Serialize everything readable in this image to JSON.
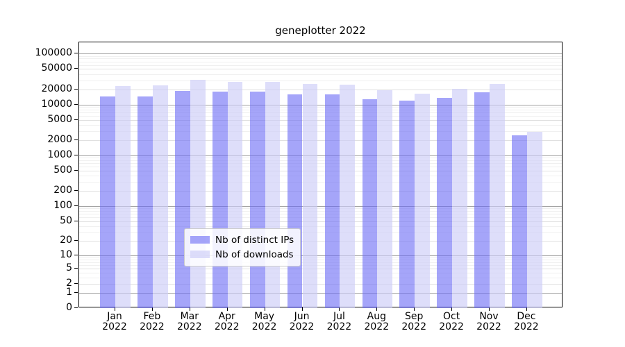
{
  "title": "geneplotter 2022",
  "chart_data": {
    "type": "bar",
    "title": "geneplotter 2022",
    "categories": [
      "Jan 2022",
      "Feb 2022",
      "Mar 2022",
      "Apr 2022",
      "May 2022",
      "Jun 2022",
      "Jul 2022",
      "Aug 2022",
      "Sep 2022",
      "Oct 2022",
      "Nov 2022",
      "Dec 2022"
    ],
    "series": [
      {
        "name": "Nb of distinct IPs",
        "color": "rgba(105,105,245,0.60)",
        "color_hex_on_white": "#a5a5f6",
        "values": [
          14500,
          14300,
          18400,
          17800,
          17800,
          16100,
          15800,
          12700,
          11800,
          13700,
          17700,
          2450
        ]
      },
      {
        "name": "Nb of downloads",
        "color": "rgba(205,205,248,0.65)",
        "color_hex_on_white": "#dedefa",
        "values": [
          22800,
          24000,
          30300,
          27900,
          27900,
          25600,
          24800,
          19300,
          16500,
          20200,
          25400,
          2900
        ]
      }
    ],
    "xlabel": "",
    "ylabel": "",
    "yscale": "symlog",
    "ylim": [
      0,
      163000
    ],
    "y_ticks": [
      0,
      1,
      2,
      5,
      10,
      20,
      50,
      100,
      200,
      500,
      1000,
      2000,
      5000,
      10000,
      20000,
      50000,
      100000
    ],
    "grid": true,
    "legend_position": "lower center",
    "colors": {
      "axis": "#000000",
      "grid_decade": "#a3a3a3",
      "grid_sub": "#e0e0e0",
      "grid_minor": "#f0f0f0",
      "background": "#ffffff"
    }
  }
}
